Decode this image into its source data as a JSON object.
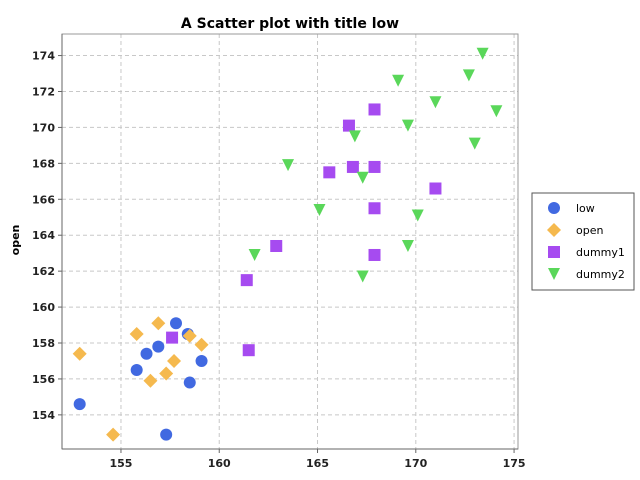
{
  "chart_data": {
    "type": "scatter",
    "title": "A Scatter plot with title low",
    "xlabel": "",
    "ylabel": "open",
    "xlim": [
      152,
      175.2
    ],
    "ylim": [
      152.1,
      175.2
    ],
    "x_ticks": [
      155,
      160,
      165,
      170,
      175
    ],
    "y_ticks": [
      154,
      156,
      158,
      160,
      162,
      164,
      166,
      168,
      170,
      172,
      174
    ],
    "grid": true,
    "legend_position": "right",
    "series": [
      {
        "name": "low",
        "marker": "circle",
        "color": "#4169E1",
        "points": [
          [
            152.9,
            154.6
          ],
          [
            155.8,
            156.5
          ],
          [
            156.3,
            157.4
          ],
          [
            156.9,
            157.8
          ],
          [
            157.3,
            152.9
          ],
          [
            157.8,
            159.1
          ],
          [
            158.4,
            158.5
          ],
          [
            158.5,
            155.8
          ],
          [
            159.1,
            157.0
          ]
        ]
      },
      {
        "name": "open",
        "marker": "diamond",
        "color": "#F5B94E",
        "points": [
          [
            152.9,
            157.4
          ],
          [
            154.6,
            152.9
          ],
          [
            155.8,
            158.5
          ],
          [
            156.5,
            155.9
          ],
          [
            156.9,
            159.1
          ],
          [
            157.3,
            156.3
          ],
          [
            157.7,
            157.0
          ],
          [
            158.5,
            158.4
          ],
          [
            159.1,
            157.9
          ]
        ]
      },
      {
        "name": "dummy1",
        "marker": "square",
        "color": "#A64BF0",
        "points": [
          [
            157.6,
            158.3
          ],
          [
            161.4,
            161.5
          ],
          [
            161.5,
            157.6
          ],
          [
            162.9,
            163.4
          ],
          [
            165.6,
            167.5
          ],
          [
            166.6,
            170.1
          ],
          [
            166.8,
            167.8
          ],
          [
            167.9,
            171.0
          ],
          [
            167.9,
            167.8
          ],
          [
            167.9,
            165.5
          ],
          [
            167.9,
            162.9
          ],
          [
            171.0,
            166.6
          ]
        ]
      },
      {
        "name": "dummy2",
        "marker": "triangle-down",
        "color": "#5AD75A",
        "points": [
          [
            161.8,
            162.9
          ],
          [
            163.5,
            167.9
          ],
          [
            165.1,
            165.4
          ],
          [
            166.9,
            169.5
          ],
          [
            167.3,
            167.2
          ],
          [
            167.3,
            161.7
          ],
          [
            169.1,
            172.6
          ],
          [
            169.6,
            170.1
          ],
          [
            169.6,
            163.4
          ],
          [
            170.1,
            165.1
          ],
          [
            171.0,
            171.4
          ],
          [
            172.7,
            172.9
          ],
          [
            173.0,
            169.1
          ],
          [
            173.4,
            174.1
          ],
          [
            174.1,
            170.9
          ]
        ]
      }
    ]
  }
}
